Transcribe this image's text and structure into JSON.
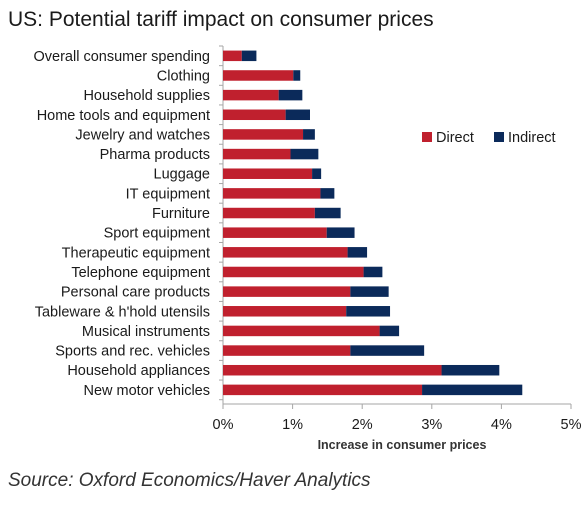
{
  "title": "US: Potential tariff impact on consumer prices",
  "source": "Source: Oxford Economics/Haver Analytics",
  "chart_data": {
    "type": "bar",
    "orientation": "horizontal",
    "stacked": true,
    "title": "US: Potential tariff impact on consumer prices",
    "xlabel": "Increase in consumer prices",
    "ylabel": "",
    "xlim": [
      0,
      5
    ],
    "xticks": [
      "0%",
      "1%",
      "2%",
      "3%",
      "4%",
      "5%"
    ],
    "legend_position": "right",
    "grid": false,
    "categories": [
      "Overall consumer spending",
      "Clothing",
      "Household supplies",
      "Home tools and equipment",
      "Jewelry and watches",
      "Pharma products",
      "Luggage",
      "IT equipment",
      "Furniture",
      "Sport equipment",
      "Therapeutic equipment",
      "Telephone equipment",
      "Personal care products",
      "Tableware & h'hold utensils",
      "Musical instruments",
      "Sports and rec. vehicles",
      "Household appliances",
      "New motor vehicles"
    ],
    "series": [
      {
        "name": "Direct",
        "color": "#c0202e",
        "values": [
          0.27,
          1.01,
          0.8,
          0.9,
          1.15,
          0.97,
          1.28,
          1.4,
          1.32,
          1.49,
          1.79,
          2.02,
          1.83,
          1.77,
          2.25,
          1.83,
          3.14,
          2.86
        ]
      },
      {
        "name": "Indirect",
        "color": "#0b2a5a",
        "values": [
          0.21,
          0.1,
          0.34,
          0.35,
          0.17,
          0.4,
          0.13,
          0.2,
          0.37,
          0.4,
          0.28,
          0.27,
          0.55,
          0.63,
          0.28,
          1.06,
          0.83,
          1.44
        ]
      }
    ]
  }
}
